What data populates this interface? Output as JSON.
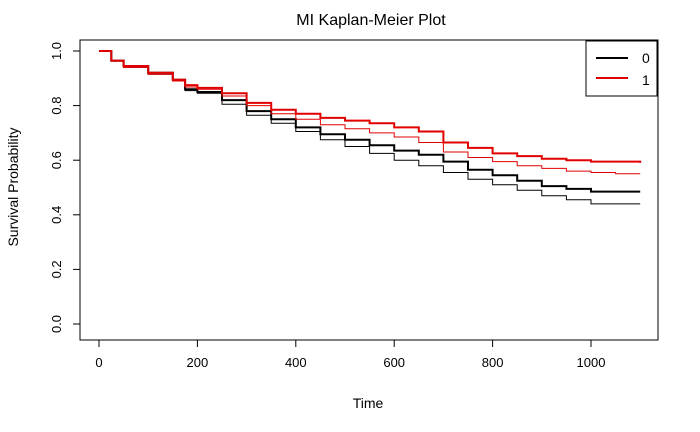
{
  "chart_data": {
    "type": "line",
    "title": "MI Kaplan-Meier Plot",
    "xlabel": "Time",
    "ylabel": "Survival Probability",
    "xlim": [
      0,
      1100
    ],
    "ylim": [
      0,
      1.0
    ],
    "xticks": [
      0,
      200,
      400,
      600,
      800,
      1000
    ],
    "yticks": [
      0.0,
      0.2,
      0.4,
      0.6,
      0.8,
      1.0
    ],
    "ytick_labels": [
      "0.0",
      "0.2",
      "0.4",
      "0.6",
      "0.8",
      "1.0"
    ],
    "grid": false,
    "legend_position": "top-right",
    "legend": [
      {
        "label": "0",
        "color": "#000000"
      },
      {
        "label": "1",
        "color": "#e00000"
      }
    ],
    "series": [
      {
        "name": "0",
        "color": "#000000",
        "step": true,
        "x": [
          0,
          25,
          50,
          100,
          150,
          175,
          200,
          250,
          300,
          350,
          400,
          450,
          500,
          550,
          600,
          650,
          700,
          750,
          800,
          850,
          900,
          950,
          1000,
          1050,
          1100
        ],
        "y": [
          1.0,
          0.965,
          0.945,
          0.92,
          0.895,
          0.86,
          0.85,
          0.82,
          0.78,
          0.75,
          0.72,
          0.695,
          0.675,
          0.655,
          0.635,
          0.62,
          0.595,
          0.565,
          0.545,
          0.525,
          0.505,
          0.495,
          0.485,
          0.485,
          0.485
        ]
      },
      {
        "name": "0",
        "color": "#000000",
        "step": true,
        "x": [
          0,
          25,
          50,
          100,
          150,
          175,
          200,
          250,
          300,
          350,
          400,
          450,
          500,
          550,
          600,
          650,
          700,
          750,
          800,
          850,
          900,
          950,
          1000,
          1050,
          1100
        ],
        "y": [
          1.0,
          0.963,
          0.94,
          0.915,
          0.89,
          0.855,
          0.845,
          0.805,
          0.765,
          0.735,
          0.705,
          0.675,
          0.65,
          0.625,
          0.6,
          0.58,
          0.555,
          0.53,
          0.51,
          0.49,
          0.47,
          0.455,
          0.44,
          0.44,
          0.44
        ]
      },
      {
        "name": "1",
        "color": "#e00000",
        "step": true,
        "x": [
          0,
          25,
          50,
          100,
          150,
          175,
          200,
          250,
          300,
          350,
          400,
          450,
          500,
          550,
          600,
          650,
          700,
          750,
          800,
          850,
          900,
          950,
          1000,
          1050,
          1100
        ],
        "y": [
          1.0,
          0.965,
          0.945,
          0.92,
          0.895,
          0.875,
          0.865,
          0.845,
          0.81,
          0.785,
          0.77,
          0.755,
          0.745,
          0.735,
          0.72,
          0.705,
          0.665,
          0.645,
          0.625,
          0.615,
          0.605,
          0.6,
          0.595,
          0.595,
          0.59
        ]
      },
      {
        "name": "1",
        "color": "#e00000",
        "step": true,
        "x": [
          0,
          25,
          50,
          100,
          150,
          175,
          200,
          250,
          300,
          350,
          400,
          450,
          500,
          550,
          600,
          650,
          700,
          750,
          800,
          850,
          900,
          950,
          1000,
          1050,
          1100
        ],
        "y": [
          1.0,
          0.963,
          0.94,
          0.915,
          0.89,
          0.868,
          0.86,
          0.835,
          0.8,
          0.77,
          0.75,
          0.73,
          0.715,
          0.7,
          0.685,
          0.665,
          0.63,
          0.61,
          0.595,
          0.58,
          0.57,
          0.56,
          0.555,
          0.55,
          0.55
        ]
      }
    ]
  }
}
